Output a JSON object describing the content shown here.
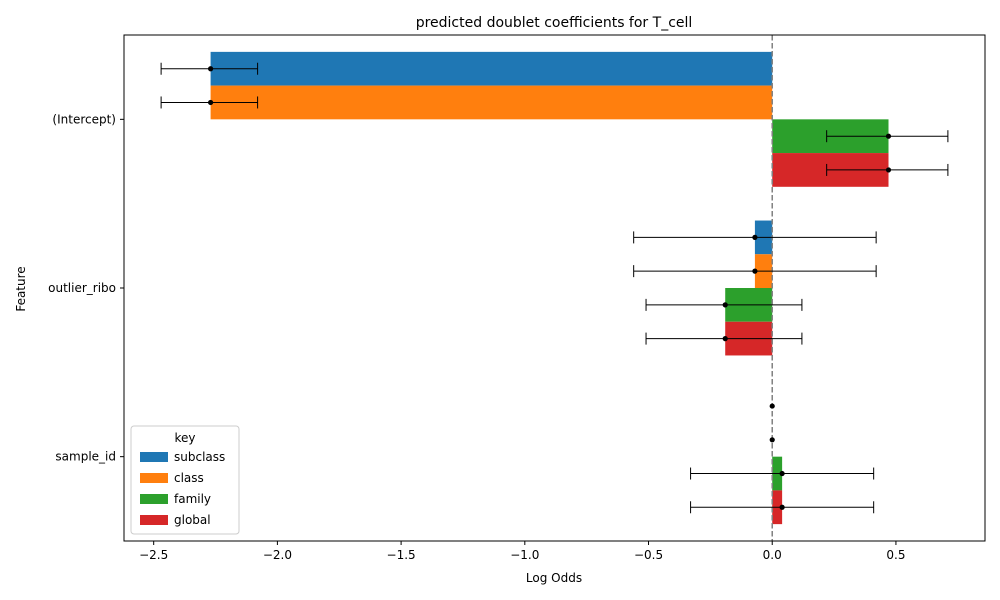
{
  "chart_data": {
    "type": "bar",
    "orientation": "horizontal",
    "title": "predicted doublet coefficients for T_cell",
    "xlabel": "Log Odds",
    "ylabel": "Feature",
    "xlim": [
      -2.62,
      0.86
    ],
    "xticks": [
      -2.5,
      -2.0,
      -1.5,
      -1.0,
      -0.5,
      0.0,
      0.5
    ],
    "xtick_labels": [
      "−2.5",
      "−2.0",
      "−1.5",
      "−1.0",
      "−0.5",
      "0.0",
      "0.5"
    ],
    "categories": [
      "(Intercept)",
      "outlier_ribo",
      "sample_id"
    ],
    "reference_line": 0.0,
    "legend": {
      "title": "key",
      "placement": "lower-left"
    },
    "series": [
      {
        "name": "subclass",
        "color": "#1f77b4",
        "values": [
          -2.27,
          -0.07,
          0.0
        ],
        "err_low": [
          -2.47,
          -0.56,
          0.0
        ],
        "err_high": [
          -2.08,
          0.42,
          0.0
        ]
      },
      {
        "name": "class",
        "color": "#ff7f0e",
        "values": [
          -2.27,
          -0.07,
          0.0
        ],
        "err_low": [
          -2.47,
          -0.56,
          0.0
        ],
        "err_high": [
          -2.08,
          0.42,
          0.0
        ]
      },
      {
        "name": "family",
        "color": "#2ca02c",
        "values": [
          0.47,
          -0.19,
          0.04
        ],
        "err_low": [
          0.22,
          -0.51,
          -0.33
        ],
        "err_high": [
          0.71,
          0.12,
          0.41
        ]
      },
      {
        "name": "global",
        "color": "#d62728",
        "values": [
          0.47,
          -0.19,
          0.04
        ],
        "err_low": [
          0.22,
          -0.51,
          -0.33
        ],
        "err_high": [
          0.71,
          0.12,
          0.41
        ]
      }
    ]
  }
}
